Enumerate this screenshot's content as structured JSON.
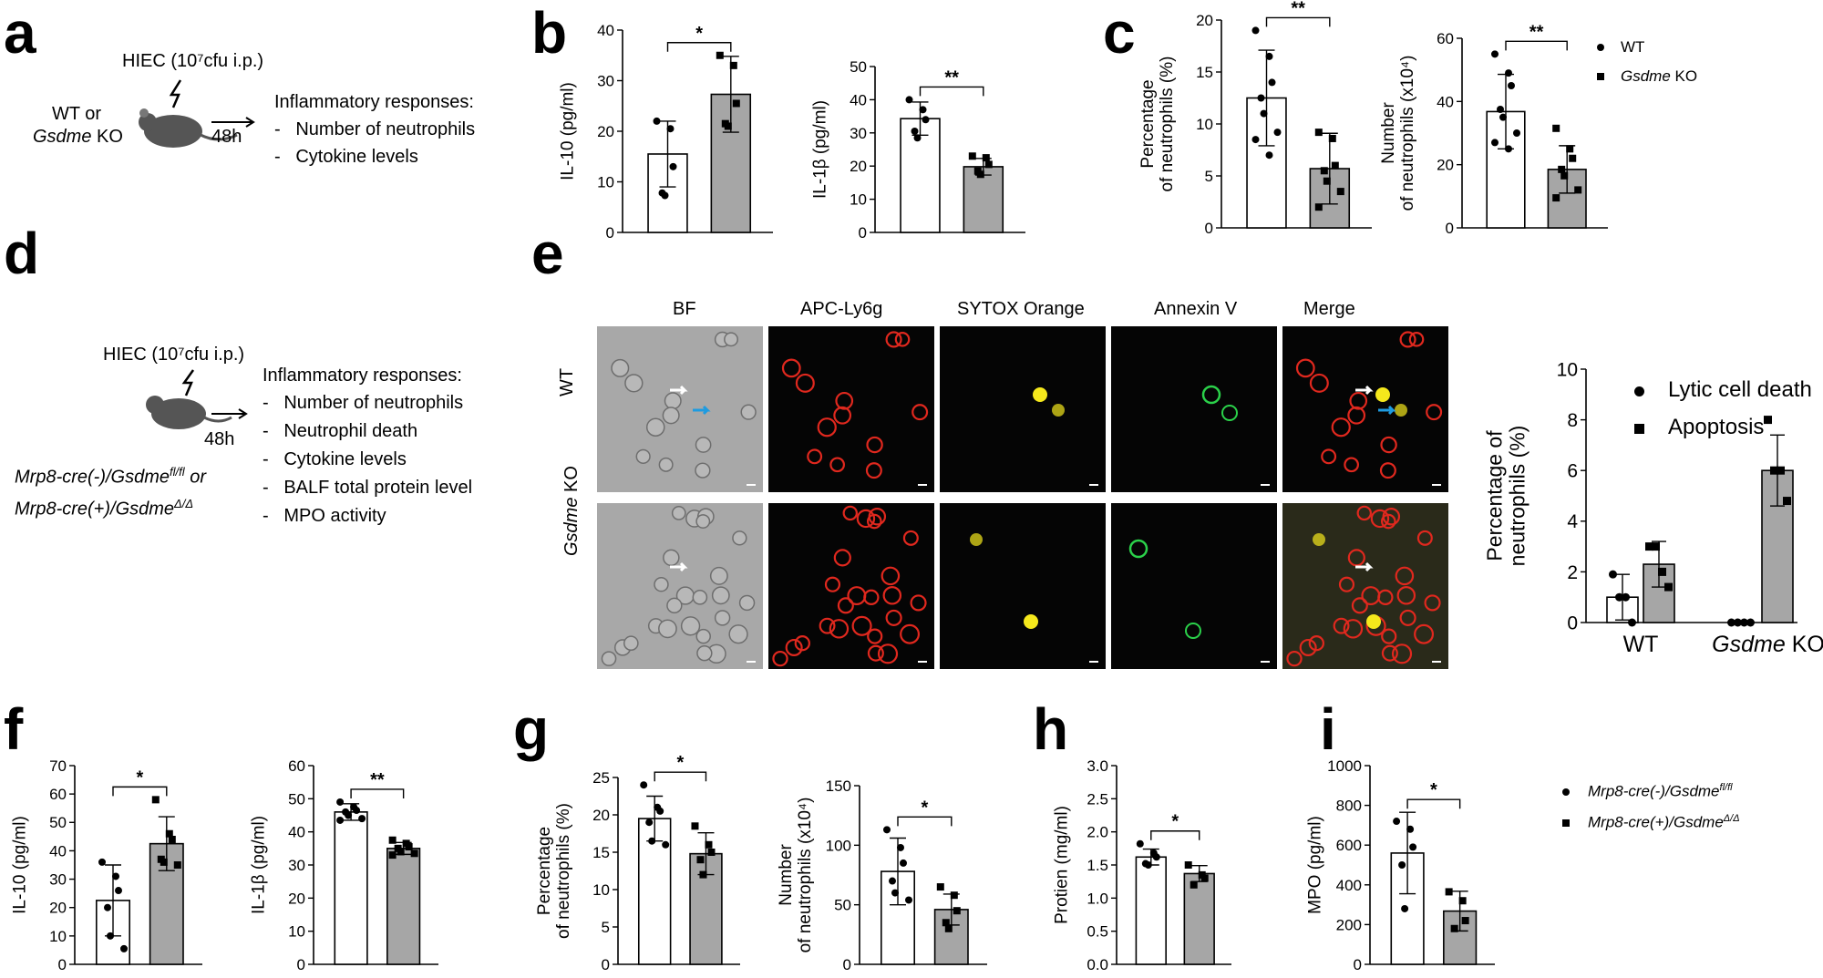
{
  "panels": {
    "a": {
      "letter": "a",
      "injection": "HIEC (10⁷cfu  i.p.)",
      "mouse_line1": "WT or",
      "mouse_line2_italic": "Gsdme",
      "mouse_line2_rest": " KO",
      "time": "48h",
      "responses_title": "Inflammatory responses:",
      "responses": [
        "Number of neutrophils",
        "Cytokine levels"
      ]
    },
    "b": {
      "letter": "b"
    },
    "c": {
      "letter": "c",
      "legend": [
        {
          "label": "WT"
        },
        {
          "label_italic": "Gsdme",
          "label_rest": " KO"
        }
      ]
    },
    "d": {
      "letter": "d",
      "injection": "HIEC (10⁷cfu  i.p.)",
      "time": "48h",
      "responses_title": "Inflammatory responses:",
      "responses": [
        "Number of neutrophils",
        "Neutrophil death",
        "Cytokine levels",
        "BALF total protein level",
        "MPO activity"
      ],
      "genotype1": "Mrp8-cre(-)/Gsdme",
      "genotype1_sup": "fl/fl",
      "genotype1_tail": " or",
      "genotype2": "Mrp8-cre(+)/Gsdme",
      "genotype2_sup": "Δ/Δ"
    },
    "e": {
      "letter": "e",
      "columns": [
        "BF",
        "APC-Ly6g",
        "SYTOX Orange",
        "Annexin V",
        "Merge"
      ],
      "row_wt": "WT",
      "row_ko_italic": "Gsdme",
      "row_ko_rest": " KO",
      "legend": [
        "Lytic cell death",
        "Apoptosis"
      ]
    },
    "f": {
      "letter": "f"
    },
    "g": {
      "letter": "g"
    },
    "h": {
      "letter": "h"
    },
    "i": {
      "letter": "i",
      "legend": [
        {
          "label": "Mrp8-cre(-)/Gsdme",
          "sup": "fl/fl"
        },
        {
          "label": "Mrp8-cre(+)/Gsdme",
          "sup": "Δ/Δ"
        }
      ]
    }
  },
  "colors": {
    "wt_bar": "#ffffff",
    "ko_bar": "#a6a6a6",
    "red_cell": "#e0281e",
    "yellow_cell": "#f5e81c",
    "green_cell": "#2bd14a",
    "blue_arrow": "#1e9be0"
  },
  "chart_data": [
    {
      "id": "b1",
      "type": "bar",
      "ylabel": "IL-10 (pg/ml)",
      "ylim": [
        0,
        40
      ],
      "yticks": [
        0,
        10,
        20,
        30,
        40
      ],
      "categories": [
        "WT",
        "Gsdme KO"
      ],
      "values": [
        15.5,
        27.3
      ],
      "errors": [
        6.5,
        7.5
      ],
      "points": [
        [
          22,
          20.5,
          13,
          7.8,
          7.3
        ],
        [
          35,
          33,
          25.5,
          21.5,
          21
        ]
      ],
      "sig": "*"
    },
    {
      "id": "b2",
      "type": "bar",
      "ylabel": "IL-1β (pg/ml)",
      "ylim": [
        0,
        50
      ],
      "yticks": [
        0,
        10,
        20,
        30,
        40,
        50
      ],
      "categories": [
        "WT",
        "Gsdme KO"
      ],
      "values": [
        34.3,
        19.8
      ],
      "errors": [
        5,
        2.5
      ],
      "points": [
        [
          40,
          37,
          34,
          30.5,
          28.5
        ],
        [
          23,
          22.5,
          20.5,
          18.5,
          17.5
        ]
      ],
      "sig": "**"
    },
    {
      "id": "c1",
      "type": "bar",
      "ylabel": "Percentage\nof neutrophils (%)",
      "ylim": [
        0,
        20
      ],
      "yticks": [
        0,
        5,
        10,
        15,
        20
      ],
      "categories": [
        "WT",
        "Gsdme KO"
      ],
      "values": [
        12.5,
        5.7
      ],
      "errors": [
        4.6,
        3.4
      ],
      "points": [
        [
          19,
          16.5,
          14,
          12.5,
          11,
          9.2,
          8.5,
          7
        ],
        [
          9.2,
          8.6,
          6,
          5.5,
          4.5,
          3.5,
          2
        ]
      ],
      "sig": "**"
    },
    {
      "id": "c2",
      "type": "bar",
      "ylabel": "Number\nof neutrophils (x10⁴)",
      "ylim": [
        0,
        60
      ],
      "yticks": [
        0,
        20,
        40,
        60
      ],
      "categories": [
        "WT",
        "Gsdme KO"
      ],
      "values": [
        36.8,
        18.5
      ],
      "errors": [
        11.8,
        7.5
      ],
      "points": [
        [
          55,
          49,
          45,
          37.5,
          35,
          30,
          27,
          25
        ],
        [
          31.5,
          25,
          22,
          18.5,
          16.5,
          12,
          9.5
        ]
      ],
      "sig": "**"
    },
    {
      "id": "e1",
      "type": "bar",
      "ylabel": "Percentage of\nneutrophils (%)",
      "ylim": [
        0,
        10
      ],
      "yticks": [
        0,
        2,
        4,
        6,
        8,
        10
      ],
      "categories": [
        "WT",
        "Gsdme KO"
      ],
      "series": [
        {
          "name": "Lytic cell death",
          "values": [
            1.0,
            0.0
          ],
          "errors": [
            0.9,
            0
          ],
          "points": [
            [
              1.9,
              1.0,
              1.0,
              0
            ],
            [
              0,
              0,
              0,
              0
            ]
          ]
        },
        {
          "name": "Apoptosis",
          "values": [
            2.3,
            6.0
          ],
          "errors": [
            0.9,
            1.4
          ],
          "points": [
            [
              3.0,
              3.0,
              2.0,
              1.4
            ],
            [
              8.0,
              6.0,
              6.0,
              4.8
            ]
          ]
        }
      ]
    },
    {
      "id": "f1",
      "type": "bar",
      "ylabel": "IL-10 (pg/ml)",
      "ylim": [
        0,
        70
      ],
      "yticks": [
        0,
        10,
        20,
        30,
        40,
        50,
        60,
        70
      ],
      "categories": [
        "Mrp8-cre(-)/Gsdme fl/fl",
        "Mrp8-cre(+)/Gsdme Δ/Δ"
      ],
      "values": [
        22.5,
        42.5
      ],
      "errors": [
        12.5,
        9.5
      ],
      "points": [
        [
          36,
          31,
          26,
          20,
          10,
          5.5
        ],
        [
          58,
          46,
          44,
          37,
          36,
          35
        ]
      ],
      "sig": "*"
    },
    {
      "id": "f2",
      "type": "bar",
      "ylabel": "IL-1β (pg/ml)",
      "ylim": [
        0,
        60
      ],
      "yticks": [
        0,
        10,
        20,
        30,
        40,
        50,
        60
      ],
      "categories": [
        "Mrp8-cre(-)/Gsdme fl/fl",
        "Mrp8-cre(+)/Gsdme Δ/Δ"
      ],
      "values": [
        46,
        35
      ],
      "errors": [
        2.5,
        1.8
      ],
      "points": [
        [
          49,
          47.5,
          46.5,
          46,
          45,
          44,
          43.5
        ],
        [
          37.5,
          36.5,
          35.5,
          35,
          34,
          33.5,
          33
        ]
      ],
      "sig": "**"
    },
    {
      "id": "g1",
      "type": "bar",
      "ylabel": "Percentage\nof neutrophils (%)",
      "ylim": [
        0,
        25
      ],
      "yticks": [
        0,
        5,
        10,
        15,
        20,
        25
      ],
      "categories": [
        "Mrp8-cre(-)/Gsdme fl/fl",
        "Mrp8-cre(+)/Gsdme Δ/Δ"
      ],
      "values": [
        19.5,
        14.8
      ],
      "errors": [
        3,
        2.8
      ],
      "points": [
        [
          24,
          21,
          20.5,
          19,
          16.5,
          16
        ],
        [
          18.5,
          16,
          15,
          14,
          12
        ]
      ],
      "sig": "*"
    },
    {
      "id": "g2",
      "type": "bar",
      "ylabel": "Number\nof neutrophils (x10⁴)",
      "ylim": [
        0,
        150
      ],
      "yticks": [
        0,
        50,
        100,
        150
      ],
      "categories": [
        "Mrp8-cre(-)/Gsdme fl/fl",
        "Mrp8-cre(+)/Gsdme Δ/Δ"
      ],
      "values": [
        78,
        46
      ],
      "errors": [
        28,
        13
      ],
      "points": [
        [
          113,
          98,
          85,
          70,
          60,
          54
        ],
        [
          65,
          58,
          45,
          35,
          30
        ]
      ],
      "sig": "*"
    },
    {
      "id": "h1",
      "type": "bar",
      "ylabel": "Protien (mg/ml)",
      "ylim": [
        0,
        3.0
      ],
      "yticks": [
        "0.0",
        "0.5",
        "1.0",
        "1.5",
        "2.0",
        "2.5",
        "3.0"
      ],
      "categories": [
        "Mrp8-cre(-)/Gsdme fl/fl",
        "Mrp8-cre(+)/Gsdme Δ/Δ"
      ],
      "values": [
        1.62,
        1.37
      ],
      "errors": [
        0.12,
        0.12
      ],
      "points": [
        [
          1.82,
          1.68,
          1.62,
          1.52,
          1.5
        ],
        [
          1.5,
          1.35,
          1.3,
          1.2
        ]
      ],
      "sig": "*"
    },
    {
      "id": "i1",
      "type": "bar",
      "ylabel": "MPO (pg/ml)",
      "ylim": [
        0,
        1000
      ],
      "yticks": [
        0,
        200,
        400,
        600,
        800,
        1000
      ],
      "categories": [
        "Mrp8-cre(-)/Gsdme fl/fl",
        "Mrp8-cre(+)/Gsdme Δ/Δ"
      ],
      "values": [
        560,
        268
      ],
      "errors": [
        205,
        100
      ],
      "points": [
        [
          720,
          680,
          590,
          500,
          280
        ],
        [
          365,
          320,
          220,
          180
        ]
      ],
      "sig": "*"
    }
  ]
}
